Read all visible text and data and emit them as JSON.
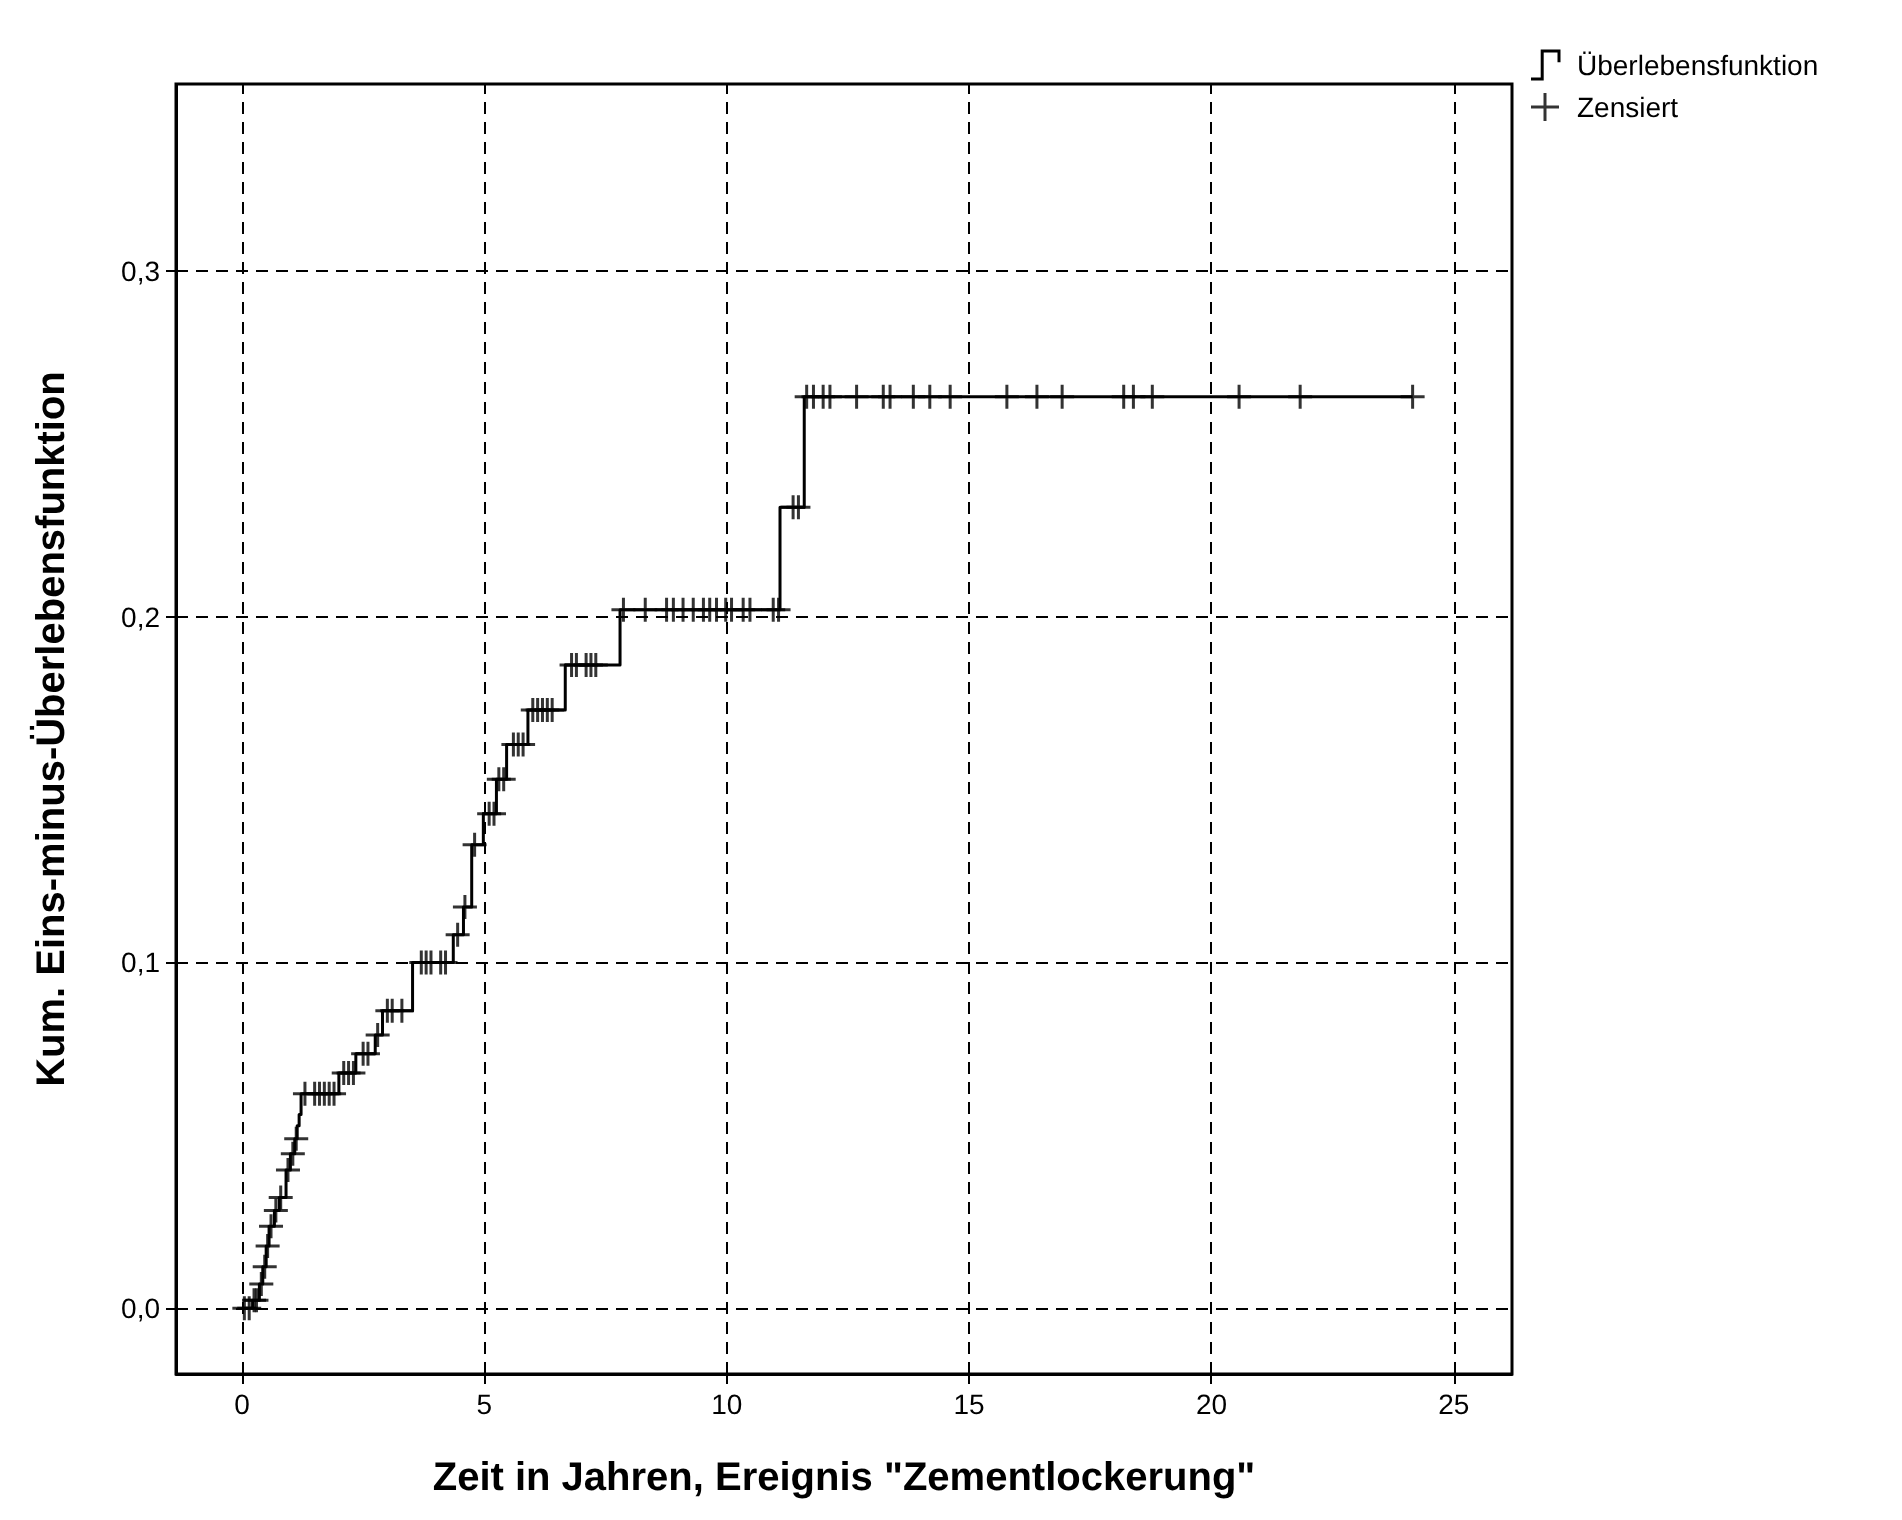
{
  "chart_data": {
    "type": "step",
    "xlabel": "Zeit in Jahren, Ereignis \"Zementlockerung\"",
    "ylabel": "Kum. Eins-minus-Überlebensfunktion",
    "xlim": [
      -1.36,
      26.2
    ],
    "ylim": [
      -0.019,
      0.354
    ],
    "xticks": [
      0,
      5,
      10,
      15,
      20,
      25
    ],
    "yticks": [
      {
        "value": 0,
        "label": "0,0"
      },
      {
        "value": 0.1,
        "label": "0,1"
      },
      {
        "value": 0.2,
        "label": "0,2"
      },
      {
        "value": 0.3,
        "label": "0,3"
      }
    ],
    "grid": true,
    "legend": "top right",
    "series": [
      {
        "name": "Überlebensfunktion",
        "color": "#000000",
        "marker": "none",
        "line_style": "solid",
        "x": [
          0,
          0.22,
          0.36,
          0.43,
          0.5,
          0.56,
          0.67,
          0.77,
          0.91,
          1.0,
          1.09,
          1.14,
          1.18,
          1.22,
          2.0,
          2.35,
          2.75,
          2.9,
          3.52,
          4.36,
          4.57,
          4.74,
          4.98,
          5.25,
          5.46,
          5.9,
          6.67,
          7.8,
          11.1,
          11.6,
          24.15
        ],
        "values": [
          0,
          0.0023,
          0.007,
          0.012,
          0.018,
          0.0237,
          0.0283,
          0.032,
          0.04,
          0.0447,
          0.049,
          0.0528,
          0.056,
          0.062,
          0.068,
          0.0736,
          0.079,
          0.086,
          0.1,
          0.108,
          0.116,
          0.134,
          0.143,
          0.153,
          0.163,
          0.173,
          0.186,
          0.202,
          0.2316,
          0.2636,
          0.2636
        ]
      },
      {
        "type": "scatter",
        "name": "Zensiert",
        "color": "#000000",
        "marker": "cross",
        "x": [
          0.05,
          0.15,
          0.25,
          0.3,
          0.4,
          0.47,
          0.53,
          0.6,
          0.7,
          0.8,
          0.95,
          1.05,
          1.12,
          1.3,
          1.5,
          1.6,
          1.7,
          1.8,
          1.9,
          2.1,
          2.2,
          2.3,
          2.5,
          2.6,
          2.8,
          3.0,
          3.1,
          3.3,
          3.7,
          3.8,
          3.9,
          4.1,
          4.2,
          4.45,
          4.6,
          4.8,
          5.1,
          5.2,
          5.3,
          5.4,
          5.6,
          5.7,
          5.8,
          6.0,
          6.1,
          6.2,
          6.3,
          6.4,
          6.8,
          6.9,
          7.1,
          7.2,
          7.3,
          7.87,
          8.32,
          8.76,
          8.9,
          9.1,
          9.31,
          9.52,
          9.65,
          9.79,
          9.98,
          10.1,
          10.34,
          10.48,
          10.96,
          11.07,
          11.37,
          11.48,
          11.65,
          11.79,
          11.99,
          12.13,
          12.68,
          13.23,
          13.37,
          13.85,
          14.19,
          14.61,
          15.78,
          16.4,
          16.92,
          18.19,
          18.39,
          18.78,
          20.57,
          21.83,
          24.15
        ],
        "values": [
          0,
          0,
          0.0023,
          0.0023,
          0.007,
          0.012,
          0.018,
          0.0237,
          0.0283,
          0.032,
          0.04,
          0.0447,
          0.049,
          0.062,
          0.062,
          0.062,
          0.062,
          0.062,
          0.062,
          0.068,
          0.068,
          0.068,
          0.0736,
          0.0736,
          0.079,
          0.086,
          0.086,
          0.086,
          0.1,
          0.1,
          0.1,
          0.1,
          0.1,
          0.108,
          0.116,
          0.134,
          0.143,
          0.143,
          0.153,
          0.153,
          0.163,
          0.163,
          0.163,
          0.173,
          0.173,
          0.173,
          0.173,
          0.173,
          0.186,
          0.186,
          0.186,
          0.186,
          0.186,
          0.202,
          0.202,
          0.202,
          0.202,
          0.202,
          0.202,
          0.202,
          0.202,
          0.202,
          0.202,
          0.202,
          0.202,
          0.202,
          0.202,
          0.202,
          0.2316,
          0.2316,
          0.2636,
          0.2636,
          0.2636,
          0.2636,
          0.2636,
          0.2636,
          0.2636,
          0.2636,
          0.2636,
          0.2636,
          0.2636,
          0.2636,
          0.2636,
          0.2636,
          0.2636,
          0.2636,
          0.2636,
          0.2636,
          0.2636
        ]
      }
    ]
  }
}
